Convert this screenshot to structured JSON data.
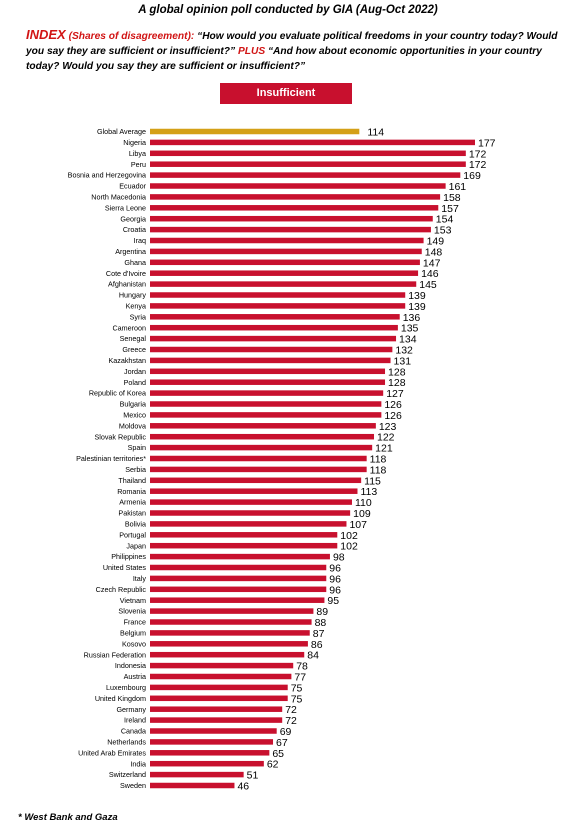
{
  "header": {
    "title": "A global opinion poll conducted by GIA (Aug-Oct 2022)",
    "index_label": "INDEX",
    "shares_label": "(Shares of disagreement):",
    "question_1": "“How would you evaluate political freedoms in your country today? Would you say they are sufficient or insufficient?”",
    "plus_label": "PLUS",
    "question_2": "“And how about economic opportunities in your country today?  Would you say they are sufficient or insufficient?”"
  },
  "legend_badge": "Insufficient",
  "footnote": "* West Bank and Gaza",
  "colors": {
    "bar": "#c8102e",
    "average_bar": "#d4a017",
    "accent_text": "#d11414"
  },
  "chart_data": {
    "type": "bar",
    "orientation": "horizontal",
    "series": [
      {
        "name": "Insufficient"
      }
    ],
    "categories": [
      "Global Average",
      "Nigeria",
      "Libya",
      "Peru",
      "Bosnia and Herzegovina",
      "Ecuador",
      "North Macedonia",
      "Sierra Leone",
      "Georgia",
      "Croatia",
      "Iraq",
      "Argentina",
      "Ghana",
      "Cote d'Ivoire",
      "Afghanistan",
      "Hungary",
      "Kenya",
      "Syria",
      "Cameroon",
      "Senegal",
      "Greece",
      "Kazakhstan",
      "Jordan",
      "Poland",
      "Republic of Korea",
      "Bulgaria",
      "Mexico",
      "Moldova",
      "Slovak Republic",
      "Spain",
      "Palestinian territories*",
      "Serbia",
      "Thailand",
      "Romania",
      "Armenia",
      "Pakistan",
      "Bolivia",
      "Portugal",
      "Japan",
      "Philippines",
      "United States",
      "Italy",
      "Czech Republic",
      "Vietnam",
      "Slovenia",
      "France",
      "Belgium",
      "Kosovo",
      "Russian Federation",
      "Indonesia",
      "Austria",
      "Luxembourg",
      "United Kingdom",
      "Germany",
      "Ireland",
      "Canada",
      "Netherlands",
      "United Arab Emirates",
      "India",
      "Switzerland",
      "Sweden"
    ],
    "values": [
      114,
      177,
      172,
      172,
      169,
      161,
      158,
      157,
      154,
      153,
      149,
      148,
      147,
      146,
      145,
      139,
      139,
      136,
      135,
      134,
      132,
      131,
      128,
      128,
      127,
      126,
      126,
      123,
      122,
      121,
      118,
      118,
      115,
      113,
      110,
      109,
      107,
      102,
      102,
      98,
      96,
      96,
      96,
      95,
      89,
      88,
      87,
      86,
      84,
      78,
      77,
      75,
      75,
      72,
      72,
      69,
      67,
      65,
      62,
      51,
      46
    ],
    "highlight_category": "Global Average",
    "xlim": [
      0,
      177
    ],
    "grid": false
  }
}
